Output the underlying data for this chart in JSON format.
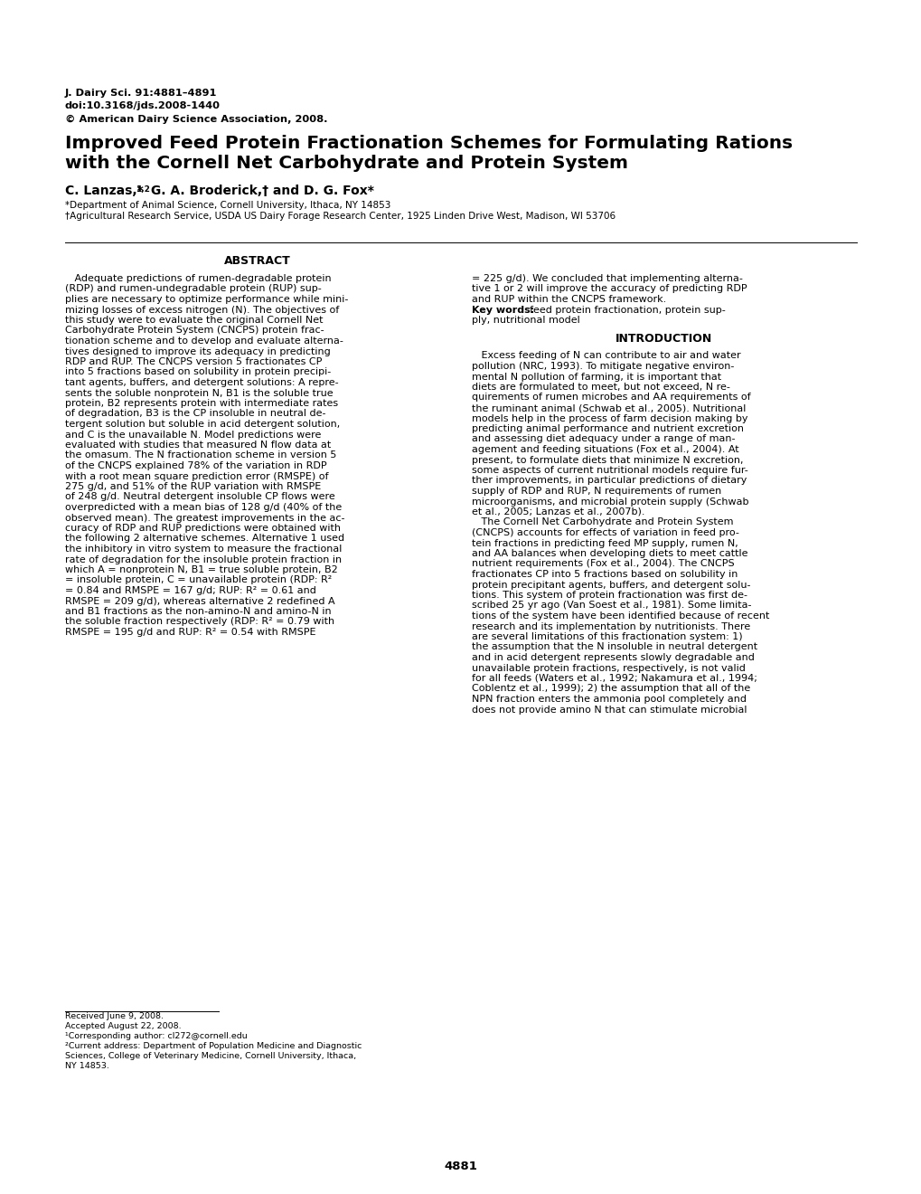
{
  "bg_color": "#ffffff",
  "journal_line1": "J. Dairy Sci. 91:4881–4891",
  "journal_line2": "doi:10.3168/jds.2008-1440",
  "journal_line3": "© American Dairy Science Association, 2008.",
  "title_line1": "Improved Feed Protein Fractionation Schemes for Formulating Rations",
  "title_line2": "with the Cornell Net Carbohydrate and Protein System",
  "authors": "C. Lanzas,*",
  "authors_super": "1,2",
  "authors_rest": " G. A. Broderick,† and D. G. Fox*",
  "affil1": "*Department of Animal Science, Cornell University, Ithaca, NY 14853",
  "affil2": "†Agricultural Research Service, USDA US Dairy Forage Research Center, 1925 Linden Drive West, Madison, WI 53706",
  "abstract_title": "ABSTRACT",
  "intro_title": "INTRODUCTION",
  "abstract_left_lines": [
    "   Adequate predictions of rumen-degradable protein",
    "(RDP) and rumen-undegradable protein (RUP) sup-",
    "plies are necessary to optimize performance while mini-",
    "mizing losses of excess nitrogen (N). The objectives of",
    "this study were to evaluate the original Cornell Net",
    "Carbohydrate Protein System (CNCPS) protein frac-",
    "tionation scheme and to develop and evaluate alterna-",
    "tives designed to improve its adequacy in predicting",
    "RDP and RUP. The CNCPS version 5 fractionates CP",
    "into 5 fractions based on solubility in protein precipi-",
    "tant agents, buffers, and detergent solutions: A repre-",
    "sents the soluble nonprotein N, B1 is the soluble true",
    "protein, B2 represents protein with intermediate rates",
    "of degradation, B3 is the CP insoluble in neutral de-",
    "tergent solution but soluble in acid detergent solution,",
    "and C is the unavailable N. Model predictions were",
    "evaluated with studies that measured N flow data at",
    "the omasum. The N fractionation scheme in version 5",
    "of the CNCPS explained 78% of the variation in RDP",
    "with a root mean square prediction error (RMSPE) of",
    "275 g/d, and 51% of the RUP variation with RMSPE",
    "of 248 g/d. Neutral detergent insoluble CP flows were",
    "overpredicted with a mean bias of 128 g/d (40% of the",
    "observed mean). The greatest improvements in the ac-",
    "curacy of RDP and RUP predictions were obtained with",
    "the following 2 alternative schemes. Alternative 1 used",
    "the inhibitory in vitro system to measure the fractional",
    "rate of degradation for the insoluble protein fraction in",
    "which A = nonprotein N, B1 = true soluble protein, B2",
    "= insoluble protein, C = unavailable protein (RDP: R²",
    "= 0.84 and RMSPE = 167 g/d; RUP: R² = 0.61 and",
    "RMSPE = 209 g/d), whereas alternative 2 redefined A",
    "and B1 fractions as the non-amino-N and amino-N in",
    "the soluble fraction respectively (RDP: R² = 0.79 with",
    "RMSPE = 195 g/d and RUP: R² = 0.54 with RMSPE"
  ],
  "abstract_right_lines": [
    "= 225 g/d). We concluded that implementing alterna-",
    "tive 1 or 2 will improve the accuracy of predicting RDP",
    "and RUP within the CNCPS framework."
  ],
  "keywords_bold": "Key words:",
  "keywords_rest": "  feed protein fractionation, protein sup-",
  "keywords_line2": "ply, nutritional model",
  "intro_lines": [
    "   Excess feeding of N can contribute to air and water",
    "pollution (NRC, 1993). To mitigate negative environ-",
    "mental N pollution of farming, it is important that",
    "diets are formulated to meet, but not exceed, N re-",
    "quirements of rumen microbes and AA requirements of",
    "the ruminant animal (Schwab et al., 2005). Nutritional",
    "models help in the process of farm decision making by",
    "predicting animal performance and nutrient excretion",
    "and assessing diet adequacy under a range of man-",
    "agement and feeding situations (Fox et al., 2004). At",
    "present, to formulate diets that minimize N excretion,",
    "some aspects of current nutritional models require fur-",
    "ther improvements, in particular predictions of dietary",
    "supply of RDP and RUP, N requirements of rumen",
    "microorganisms, and microbial protein supply (Schwab",
    "et al., 2005; Lanzas et al., 2007b).",
    "   The Cornell Net Carbohydrate and Protein System",
    "(CNCPS) accounts for effects of variation in feed pro-",
    "tein fractions in predicting feed MP supply, rumen N,",
    "and AA balances when developing diets to meet cattle",
    "nutrient requirements (Fox et al., 2004). The CNCPS",
    "fractionates CP into 5 fractions based on solubility in",
    "protein precipitant agents, buffers, and detergent solu-",
    "tions. This system of protein fractionation was first de-",
    "scribed 25 yr ago (Van Soest et al., 1981). Some limita-",
    "tions of the system have been identified because of recent",
    "research and its implementation by nutritionists. There",
    "are several limitations of this fractionation system: 1)",
    "the assumption that the N insoluble in neutral detergent",
    "and in acid detergent represents slowly degradable and",
    "unavailable protein fractions, respectively, is not valid",
    "for all feeds (Waters et al., 1992; Nakamura et al., 1994;",
    "Coblentz et al., 1999); 2) the assumption that all of the",
    "NPN fraction enters the ammonia pool completely and",
    "does not provide amino N that can stimulate microbial"
  ],
  "footnote1": "Received June 9, 2008.",
  "footnote2": "Accepted August 22, 2008.",
  "footnote3": "¹Corresponding author: cl272@cornell.edu",
  "footnote4a": "²Current address: Department of Population Medicine and Diagnostic",
  "footnote4b": "Sciences, College of Veterinary Medicine, Cornell University, Ithaca,",
  "footnote4c": "NY 14853.",
  "page_number": "4881"
}
